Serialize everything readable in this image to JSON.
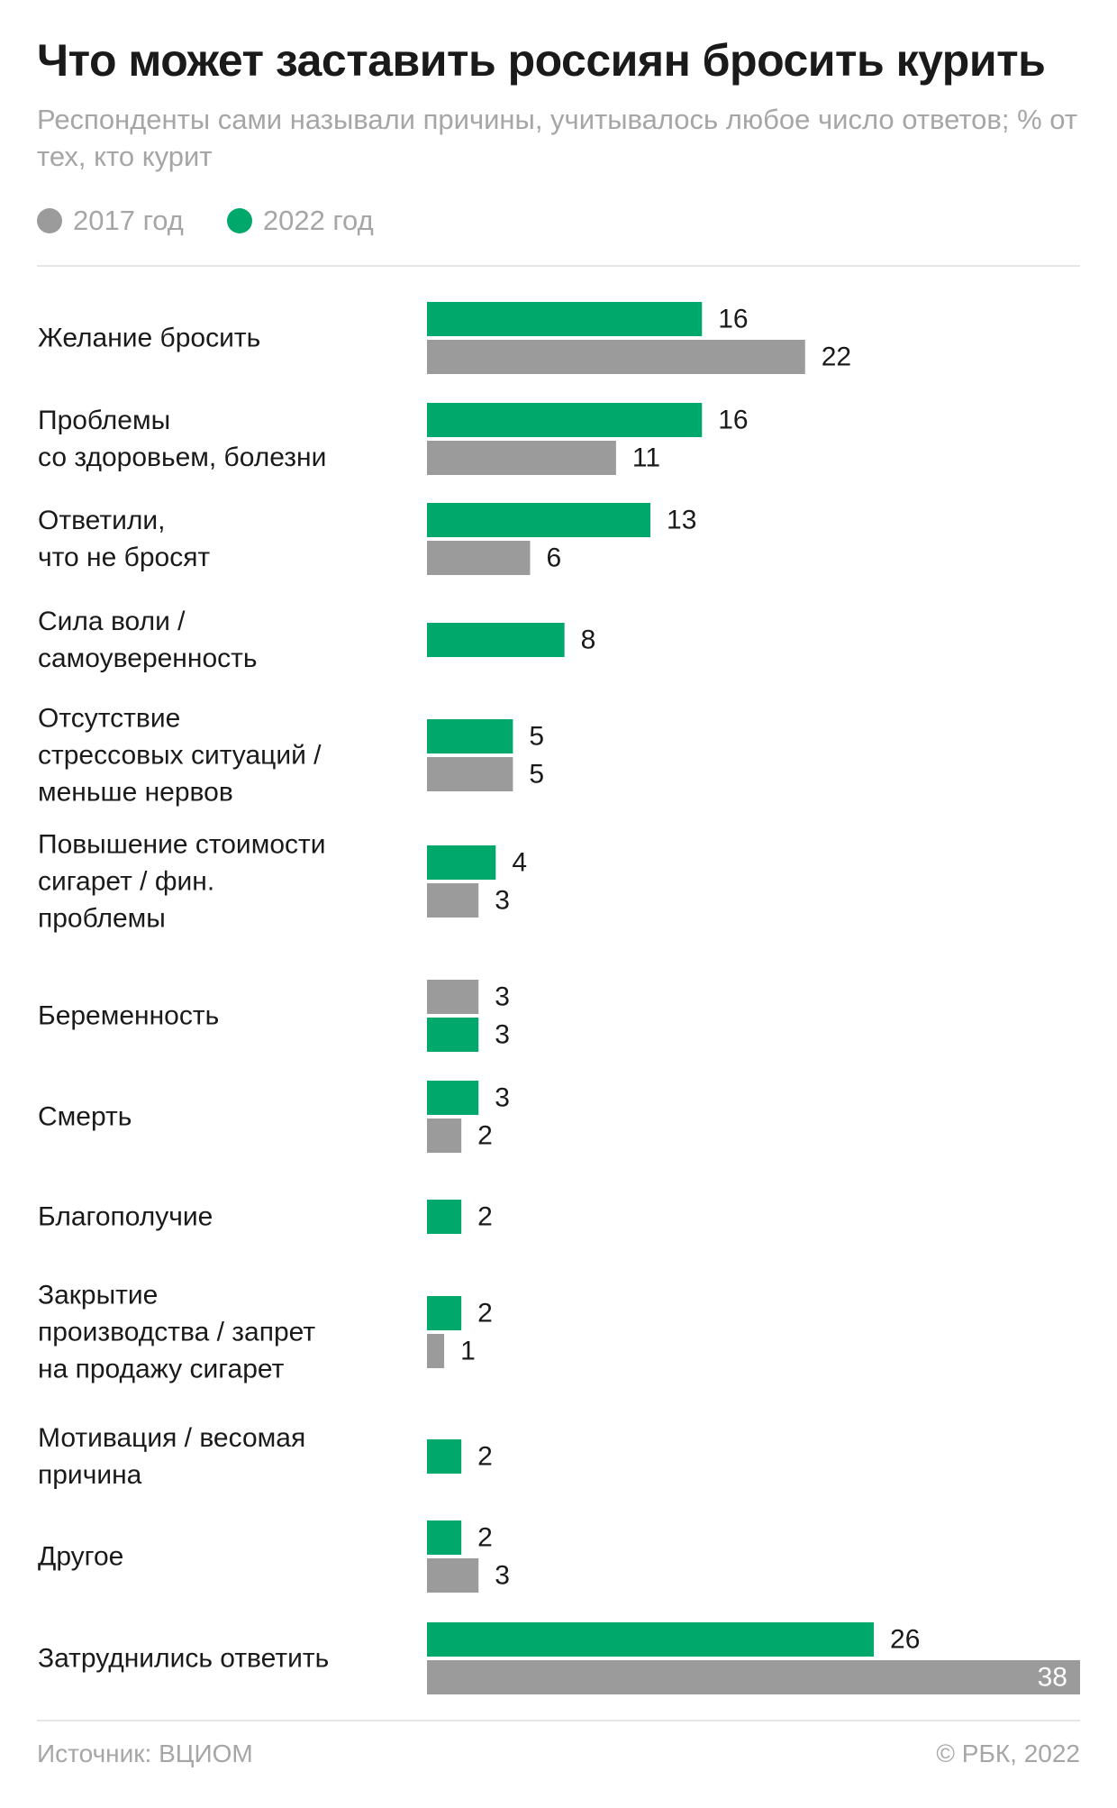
{
  "title": "Что может заставить россиян бросить курить",
  "subtitle": "Респонденты сами называли причины, учитывалось любое число ответов; % от тех, кто курит",
  "legend": [
    {
      "label": "2017 год",
      "color": "#9b9b9b"
    },
    {
      "label": "2022 год",
      "color": "#00a86b"
    }
  ],
  "source": "Источник: ВЦИОМ",
  "copyright": "© РБК, 2022",
  "chart_data": {
    "type": "bar",
    "orientation": "horizontal",
    "xlim": [
      0,
      38
    ],
    "grid": false,
    "legend_position": "top-left",
    "categories": [
      {
        "label": [
          "Желание бросить"
        ],
        "bars": [
          {
            "series": "2022 год",
            "value": 16
          },
          {
            "series": "2017 год",
            "value": 22
          }
        ]
      },
      {
        "label": [
          "Проблемы",
          "со здоровьем, болезни"
        ],
        "bars": [
          {
            "series": "2022 год",
            "value": 16
          },
          {
            "series": "2017 год",
            "value": 11
          }
        ]
      },
      {
        "label": [
          "Ответили,",
          "что не бросят"
        ],
        "bars": [
          {
            "series": "2022 год",
            "value": 13
          },
          {
            "series": "2017 год",
            "value": 6
          }
        ]
      },
      {
        "label": [
          "Сила воли /",
          "самоуверенность"
        ],
        "bars": [
          {
            "series": "2022 год",
            "value": 8
          }
        ]
      },
      {
        "label": [
          "Отсутствие",
          "стрессовых ситуаций /",
          "меньше нервов"
        ],
        "bars": [
          {
            "series": "2022 год",
            "value": 5
          },
          {
            "series": "2017 год",
            "value": 5
          }
        ]
      },
      {
        "label": [
          "Повышение стоимости",
          "сигарет / фин.",
          "проблемы"
        ],
        "bars": [
          {
            "series": "2022 год",
            "value": 4
          },
          {
            "series": "2017 год",
            "value": 3
          }
        ]
      },
      {
        "label": [
          "Беременность"
        ],
        "bars": [
          {
            "series": "2017 год",
            "value": 3
          },
          {
            "series": "2022 год",
            "value": 3
          }
        ]
      },
      {
        "label": [
          "Смерть"
        ],
        "bars": [
          {
            "series": "2022 год",
            "value": 3
          },
          {
            "series": "2017 год",
            "value": 2
          }
        ]
      },
      {
        "label": [
          "Благополучие"
        ],
        "bars": [
          {
            "series": "2022 год",
            "value": 2
          }
        ]
      },
      {
        "label": [
          "Закрытие",
          "производства / запрет",
          "на продажу сигарет"
        ],
        "bars": [
          {
            "series": "2022 год",
            "value": 2
          },
          {
            "series": "2017 год",
            "value": 1
          }
        ]
      },
      {
        "label": [
          "Мотивация / весомая",
          "причина"
        ],
        "bars": [
          {
            "series": "2022 год",
            "value": 2
          }
        ]
      },
      {
        "label": [
          "Другое"
        ],
        "bars": [
          {
            "series": "2022 год",
            "value": 2
          },
          {
            "series": "2017 год",
            "value": 3
          }
        ]
      },
      {
        "label": [
          "Затруднились ответить"
        ],
        "bars": [
          {
            "series": "2022 год",
            "value": 26
          },
          {
            "series": "2017 год",
            "value": 38
          }
        ]
      }
    ]
  }
}
